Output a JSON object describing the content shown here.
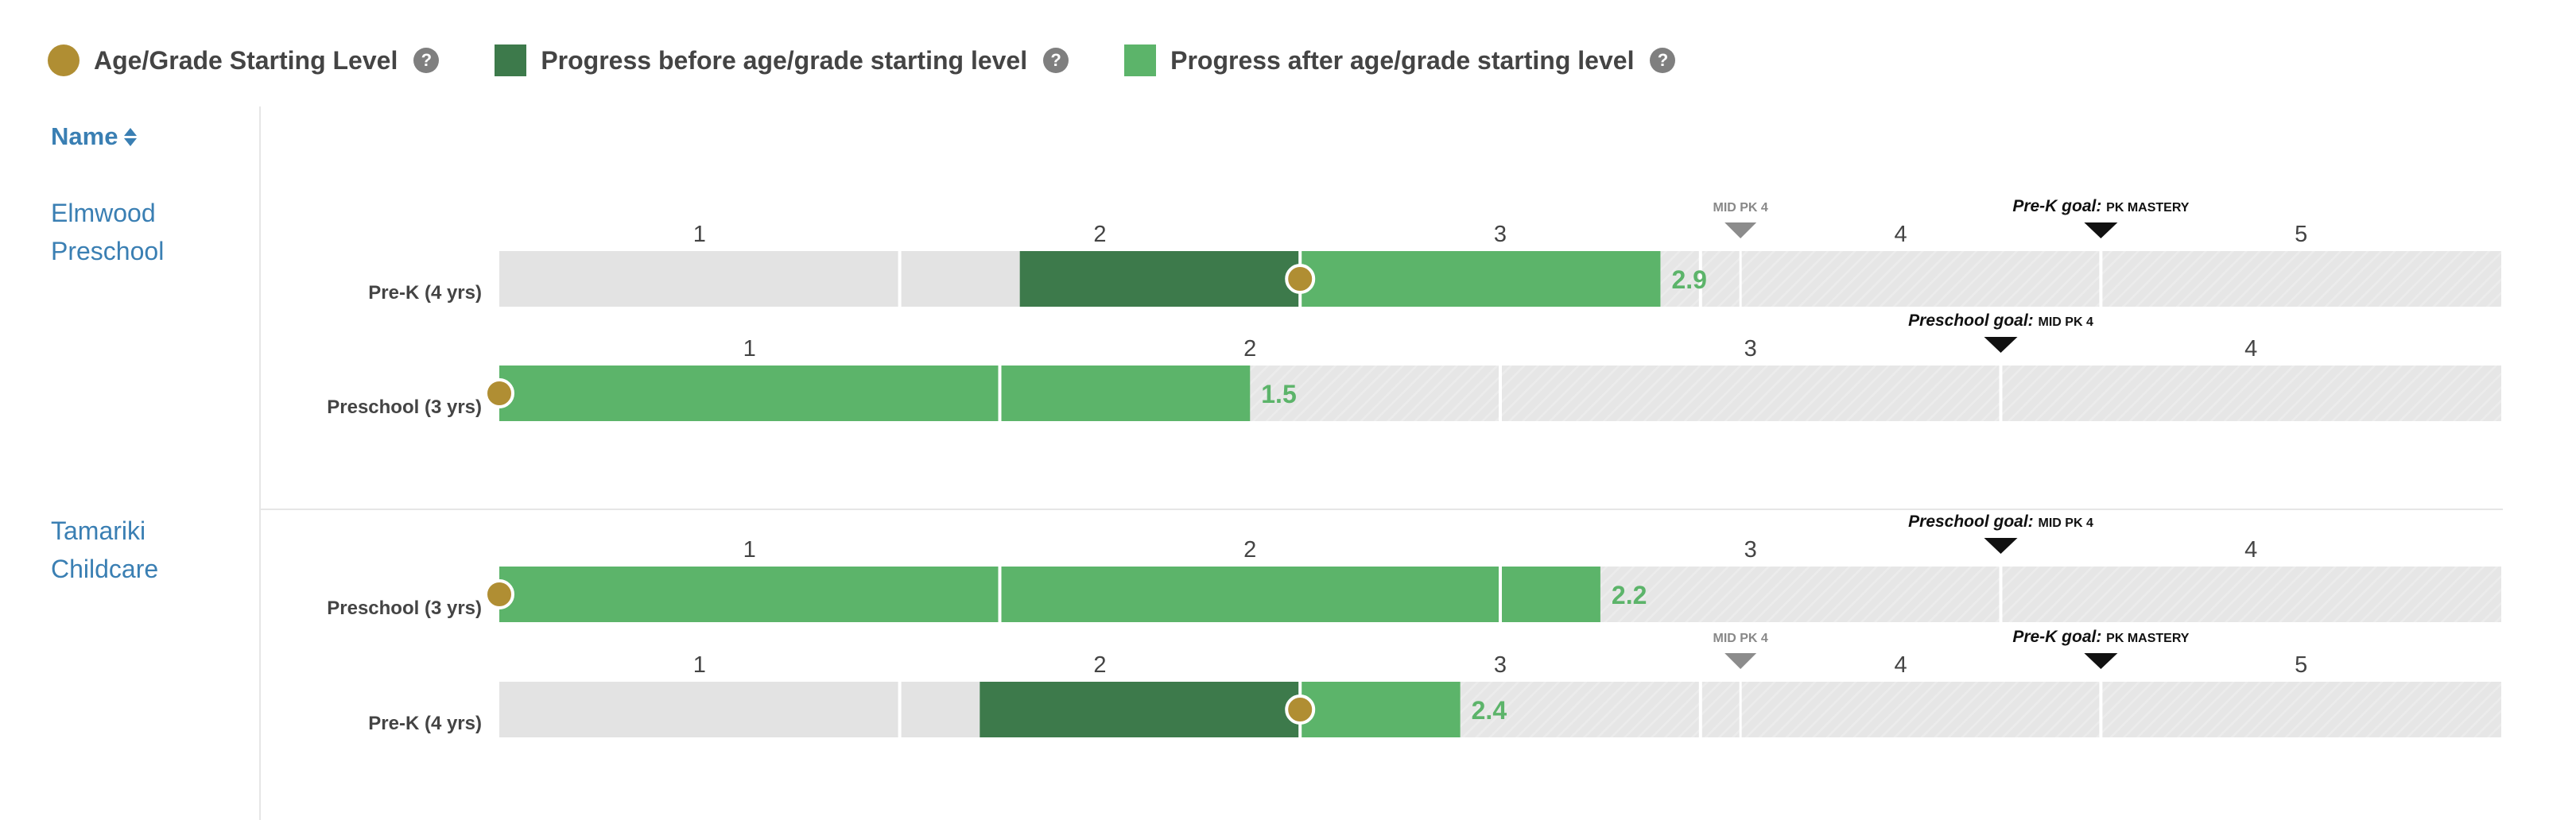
{
  "legend": [
    {
      "label": "Age/Grade Starting Level",
      "color": "#b08e33",
      "shape": "circle",
      "icon": "question-circle-icon"
    },
    {
      "label": "Progress before age/grade starting level",
      "color": "#3d7a4b",
      "shape": "square",
      "icon": "question-circle-icon"
    },
    {
      "label": "Progress after age/grade starting level",
      "color": "#5cb46a",
      "shape": "square",
      "icon": "question-circle-icon"
    }
  ],
  "table": {
    "name_header": "Name",
    "sort_icon": "sort-arrows-icon",
    "schools": [
      "Elmwood Preschool",
      "Tamariki Childcare"
    ]
  },
  "colors": {
    "starting_dot": "#b08e33",
    "before": "#3d7a4b",
    "after": "#5cb46a",
    "track": "#e3e3e3",
    "value_label": "#5cb46a",
    "marker_gray": "#8c8c8c",
    "marker_black": "#111111",
    "link": "#3a7fb3"
  },
  "chart_data": [
    {
      "type": "bar",
      "school": "Elmwood Preschool",
      "row_label": "Pre-K (4 yrs)",
      "levels": [
        "1",
        "2",
        "3",
        "4",
        "5"
      ],
      "start_level": 2.0,
      "progress_from": 1.3,
      "progress_to": 2.9,
      "value_label": "2.9",
      "markers": [
        {
          "style": "gray",
          "label": "MID PK 4",
          "at": 3.1
        },
        {
          "style": "black",
          "prefix": "Pre-K goal:",
          "label": "PK MASTERY",
          "at": 4.0
        }
      ]
    },
    {
      "type": "bar",
      "school": "Elmwood Preschool",
      "row_label": "Preschool (3 yrs)",
      "levels": [
        "1",
        "2",
        "3",
        "4"
      ],
      "start_level": 0.0,
      "progress_from": 0.0,
      "progress_to": 1.5,
      "value_label": "1.5",
      "markers": [
        {
          "style": "black",
          "prefix": "Preschool goal:",
          "label": "MID PK 4",
          "at": 3.0
        }
      ]
    },
    {
      "type": "bar",
      "school": "Tamariki Childcare",
      "row_label": "Preschool (3 yrs)",
      "levels": [
        "1",
        "2",
        "3",
        "4"
      ],
      "start_level": 0.0,
      "progress_from": 0.0,
      "progress_to": 2.2,
      "value_label": "2.2",
      "markers": [
        {
          "style": "black",
          "prefix": "Preschool goal:",
          "label": "MID PK 4",
          "at": 3.0
        }
      ]
    },
    {
      "type": "bar",
      "school": "Tamariki Childcare",
      "row_label": "Pre-K (4 yrs)",
      "levels": [
        "1",
        "2",
        "3",
        "4",
        "5"
      ],
      "start_level": 2.0,
      "progress_from": 1.2,
      "progress_to": 2.4,
      "value_label": "2.4",
      "markers": [
        {
          "style": "gray",
          "label": "MID PK 4",
          "at": 3.1
        },
        {
          "style": "black",
          "prefix": "Pre-K goal:",
          "label": "PK MASTERY",
          "at": 4.0
        }
      ]
    }
  ]
}
